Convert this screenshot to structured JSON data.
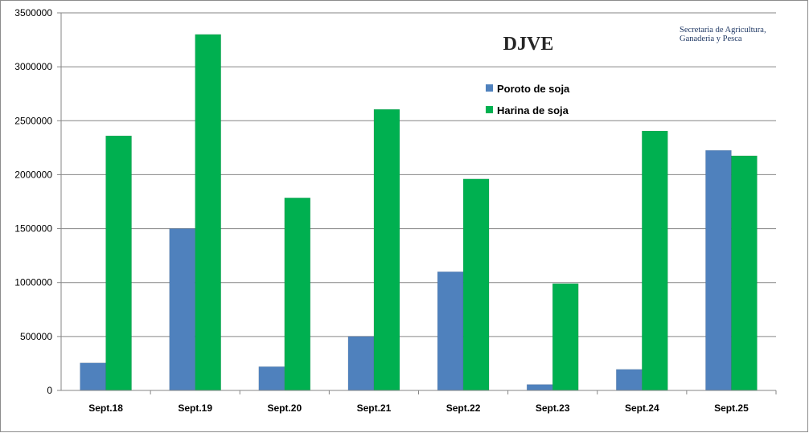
{
  "chart_data": {
    "type": "bar",
    "title": "DJVE",
    "source": "Secretaria de Agricultura,\nGanaderia y Pesca",
    "source_lines": [
      "Secretaria de Agricultura,",
      "Ganaderia y Pesca"
    ],
    "categories": [
      "Sept.18",
      "Sept.19",
      "Sept.20",
      "Sept.21",
      "Sept.22",
      "Sept.23",
      "Sept.24",
      "Sept.25"
    ],
    "series": [
      {
        "name": "Poroto de soja",
        "color": "#4f81bd",
        "values": [
          255000,
          1500000,
          220000,
          500000,
          1100000,
          55000,
          195000,
          2225000
        ]
      },
      {
        "name": "Harina de soja",
        "color": "#00b050",
        "values": [
          2360000,
          3300000,
          1785000,
          2605000,
          1960000,
          990000,
          2405000,
          2175000
        ]
      }
    ],
    "ylim": [
      0,
      3500000
    ],
    "yticks": [
      0,
      500000,
      1000000,
      1500000,
      2000000,
      2500000,
      3000000,
      3500000
    ],
    "xlabel": "",
    "ylabel": "",
    "grid": true,
    "legend_position": "top-center, inside plot"
  }
}
